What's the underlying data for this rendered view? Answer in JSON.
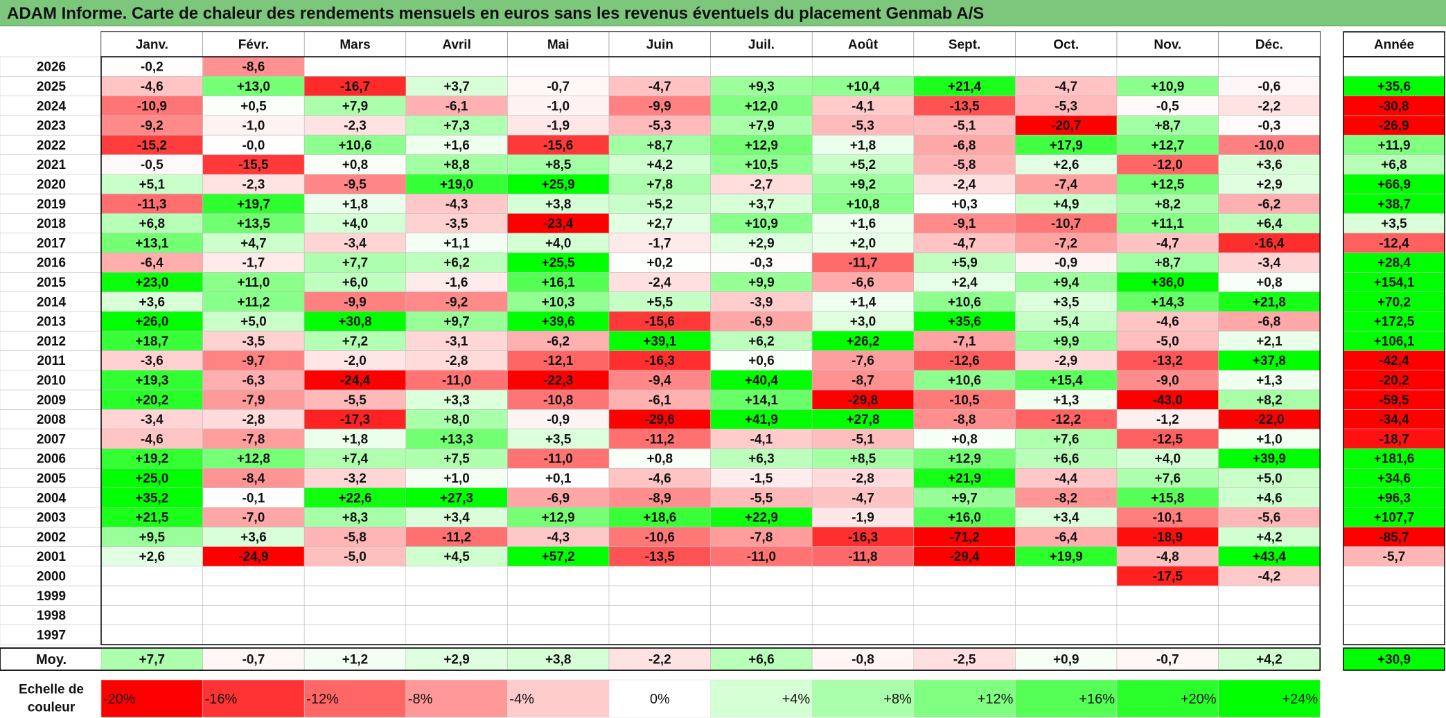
{
  "title": "ADAM Informe. Carte de chaleur des rendements mensuels en euros sans les revenus éventuels du placement Genmab A/S",
  "chart_data": {
    "type": "heatmap",
    "title": "ADAM Informe. Carte de chaleur des rendements mensuels en euros sans les revenus éventuels du placement Genmab A/S",
    "months": [
      "Janv.",
      "Févr.",
      "Mars",
      "Avril",
      "Mai",
      "Juin",
      "Juil.",
      "Août",
      "Sept.",
      "Oct.",
      "Nov.",
      "Déc."
    ],
    "annual_label": "Année",
    "average_label": "Moy.",
    "rows": [
      {
        "year": "2026",
        "values": [
          "-0,2",
          "-8,6",
          "",
          "",
          "",
          "",
          "",
          "",
          "",
          "",
          "",
          ""
        ],
        "annual": ""
      },
      {
        "year": "2025",
        "values": [
          "-4,6",
          "+13,0",
          "-16,7",
          "+3,7",
          "-0,7",
          "-4,7",
          "+9,3",
          "+10,4",
          "+21,4",
          "-4,7",
          "+10,9",
          "-0,6"
        ],
        "annual": "+35,6"
      },
      {
        "year": "2024",
        "values": [
          "-10,9",
          "+0,5",
          "+7,9",
          "-6,1",
          "-1,0",
          "-9,9",
          "+12,0",
          "-4,1",
          "-13,5",
          "-5,3",
          "-0,5",
          "-2,2"
        ],
        "annual": "-30,8"
      },
      {
        "year": "2023",
        "values": [
          "-9,2",
          "-1,0",
          "-2,3",
          "+7,3",
          "-1,9",
          "-5,3",
          "+7,9",
          "-5,3",
          "-5,1",
          "-20,7",
          "+8,7",
          "-0,3"
        ],
        "annual": "-26,9"
      },
      {
        "year": "2022",
        "values": [
          "-15,2",
          "-0,0",
          "+10,6",
          "+1,6",
          "-15,6",
          "+8,7",
          "+12,9",
          "+1,8",
          "-6,8",
          "+17,9",
          "+12,7",
          "-10,0"
        ],
        "annual": "+11,9"
      },
      {
        "year": "2021",
        "values": [
          "-0,5",
          "-15,5",
          "+0,8",
          "+8,8",
          "+8,5",
          "+4,2",
          "+10,5",
          "+5,2",
          "-5,8",
          "+2,6",
          "-12,0",
          "+3,6"
        ],
        "annual": "+6,8"
      },
      {
        "year": "2020",
        "values": [
          "+5,1",
          "-2,3",
          "-9,5",
          "+19,0",
          "+25,9",
          "+7,8",
          "-2,7",
          "+9,2",
          "-2,4",
          "-7,4",
          "+12,5",
          "+2,9"
        ],
        "annual": "+66,9"
      },
      {
        "year": "2019",
        "values": [
          "-11,3",
          "+19,7",
          "+1,8",
          "-4,3",
          "+3,8",
          "+5,2",
          "+3,7",
          "+10,8",
          "+0,3",
          "+4,9",
          "+8,2",
          "-6,2"
        ],
        "annual": "+38,7"
      },
      {
        "year": "2018",
        "values": [
          "+6,8",
          "+13,5",
          "+4,0",
          "-3,5",
          "-23,4",
          "+2,7",
          "+10,9",
          "+1,6",
          "-9,1",
          "-10,7",
          "+11,1",
          "+6,4"
        ],
        "annual": "+3,5"
      },
      {
        "year": "2017",
        "values": [
          "+13,1",
          "+4,7",
          "-3,4",
          "+1,1",
          "+4,0",
          "-1,7",
          "+2,9",
          "+2,0",
          "-4,7",
          "-7,2",
          "-4,7",
          "-16,4"
        ],
        "annual": "-12,4"
      },
      {
        "year": "2016",
        "values": [
          "-6,4",
          "-1,7",
          "+7,7",
          "+6,2",
          "+25,5",
          "+0,2",
          "-0,3",
          "-11,7",
          "+5,9",
          "-0,9",
          "+8,7",
          "-3,4"
        ],
        "annual": "+28,4"
      },
      {
        "year": "2015",
        "values": [
          "+23,0",
          "+11,0",
          "+6,0",
          "-1,6",
          "+16,1",
          "-2,4",
          "+9,9",
          "-6,6",
          "+2,4",
          "+9,4",
          "+36,0",
          "+0,8"
        ],
        "annual": "+154,1"
      },
      {
        "year": "2014",
        "values": [
          "+3,6",
          "+11,2",
          "-9,9",
          "-9,2",
          "+10,3",
          "+5,5",
          "-3,9",
          "+1,4",
          "+10,6",
          "+3,5",
          "+14,3",
          "+21,8"
        ],
        "annual": "+70,2"
      },
      {
        "year": "2013",
        "values": [
          "+26,0",
          "+5,0",
          "+30,8",
          "+9,7",
          "+39,6",
          "-15,6",
          "-6,9",
          "+3,0",
          "+35,6",
          "+5,4",
          "-4,6",
          "-6,8"
        ],
        "annual": "+172,5"
      },
      {
        "year": "2012",
        "values": [
          "+18,7",
          "-3,5",
          "+7,2",
          "-3,1",
          "-6,2",
          "+39,1",
          "+6,2",
          "+26,2",
          "-7,1",
          "+9,9",
          "-5,0",
          "+2,1"
        ],
        "annual": "+106,1"
      },
      {
        "year": "2011",
        "values": [
          "-3,6",
          "-9,7",
          "-2,0",
          "-2,8",
          "-12,1",
          "-16,3",
          "+0,6",
          "-7,6",
          "-12,6",
          "-2,9",
          "-13,2",
          "+37,8"
        ],
        "annual": "-42,4"
      },
      {
        "year": "2010",
        "values": [
          "+19,3",
          "-6,3",
          "-24,4",
          "-11,0",
          "-22,3",
          "-9,4",
          "+40,4",
          "-8,7",
          "+10,6",
          "+15,4",
          "-9,0",
          "+1,3"
        ],
        "annual": "-20,2"
      },
      {
        "year": "2009",
        "values": [
          "+20,2",
          "-7,9",
          "-5,5",
          "+3,3",
          "-10,8",
          "-6,1",
          "+14,1",
          "-29,8",
          "-10,5",
          "+1,3",
          "-43,0",
          "+8,2"
        ],
        "annual": "-59,5"
      },
      {
        "year": "2008",
        "values": [
          "-3,4",
          "-2,8",
          "-17,3",
          "+8,0",
          "-0,9",
          "-29,6",
          "+41,9",
          "+27,8",
          "-8,8",
          "-12,2",
          "-1,2",
          "-22,0"
        ],
        "annual": "-34,4"
      },
      {
        "year": "2007",
        "values": [
          "-4,6",
          "-7,8",
          "+1,8",
          "+13,3",
          "+3,5",
          "-11,2",
          "-4,1",
          "-5,1",
          "+0,8",
          "+7,6",
          "-12,5",
          "+1,0"
        ],
        "annual": "-18,7"
      },
      {
        "year": "2006",
        "values": [
          "+19,2",
          "+12,8",
          "+7,4",
          "+7,5",
          "-11,0",
          "+0,8",
          "+6,3",
          "+8,5",
          "+12,9",
          "+6,6",
          "+4,0",
          "+39,9"
        ],
        "annual": "+181,6"
      },
      {
        "year": "2005",
        "values": [
          "+25,0",
          "-8,4",
          "-3,2",
          "+1,0",
          "+0,1",
          "-4,6",
          "-1,5",
          "-2,8",
          "+21,9",
          "-4,4",
          "+7,6",
          "+5,0"
        ],
        "annual": "+34,6"
      },
      {
        "year": "2004",
        "values": [
          "+35,2",
          "-0,1",
          "+22,6",
          "+27,3",
          "-6,9",
          "-8,9",
          "-5,5",
          "-4,7",
          "+9,7",
          "-8,2",
          "+15,8",
          "+4,6"
        ],
        "annual": "+96,3"
      },
      {
        "year": "2003",
        "values": [
          "+21,5",
          "-7,0",
          "+8,3",
          "+3,4",
          "+12,9",
          "+18,6",
          "+22,9",
          "-1,9",
          "+16,0",
          "+3,4",
          "-10,1",
          "-5,6"
        ],
        "annual": "+107,7"
      },
      {
        "year": "2002",
        "values": [
          "+9,5",
          "+3,6",
          "-5,8",
          "-11,2",
          "-4,3",
          "-10,6",
          "-7,8",
          "-16,3",
          "-71,2",
          "-6,4",
          "-18,9",
          "+4,2"
        ],
        "annual": "-85,7"
      },
      {
        "year": "2001",
        "values": [
          "+2,6",
          "-24,9",
          "-5,0",
          "+4,5",
          "+57,2",
          "-13,5",
          "-11,0",
          "-11,8",
          "-29,4",
          "+19,9",
          "-4,8",
          "+43,4"
        ],
        "annual": "-5,7"
      },
      {
        "year": "2000",
        "values": [
          "",
          "",
          "",
          "",
          "",
          "",
          "",
          "",
          "",
          "",
          "-17,5",
          "-4,2"
        ],
        "annual": ""
      },
      {
        "year": "1999",
        "values": [
          "",
          "",
          "",
          "",
          "",
          "",
          "",
          "",
          "",
          "",
          "",
          ""
        ],
        "annual": ""
      },
      {
        "year": "1998",
        "values": [
          "",
          "",
          "",
          "",
          "",
          "",
          "",
          "",
          "",
          "",
          "",
          ""
        ],
        "annual": ""
      },
      {
        "year": "1997",
        "values": [
          "",
          "",
          "",
          "",
          "",
          "",
          "",
          "",
          "",
          "",
          "",
          ""
        ],
        "annual": ""
      }
    ],
    "average": {
      "values": [
        "+7,7",
        "-0,7",
        "+1,2",
        "+2,9",
        "+3,8",
        "-2,2",
        "+6,6",
        "-0,8",
        "-2,5",
        "+0,9",
        "-0,7",
        "+4,2"
      ],
      "annual": "+30,9"
    },
    "color_scale": {
      "label": "Echelle de couleur",
      "stops": [
        "-20%",
        "-16%",
        "-12%",
        "-8%",
        "-4%",
        "0%",
        "+4%",
        "+8%",
        "+12%",
        "+16%",
        "+20%",
        "+24%"
      ],
      "stop_values": [
        -20,
        -16,
        -12,
        -8,
        -4,
        0,
        4,
        8,
        12,
        16,
        20,
        24
      ],
      "negative_color": "#ff0000",
      "neutral_color": "#ffffff",
      "positive_color": "#00ff00"
    }
  }
}
